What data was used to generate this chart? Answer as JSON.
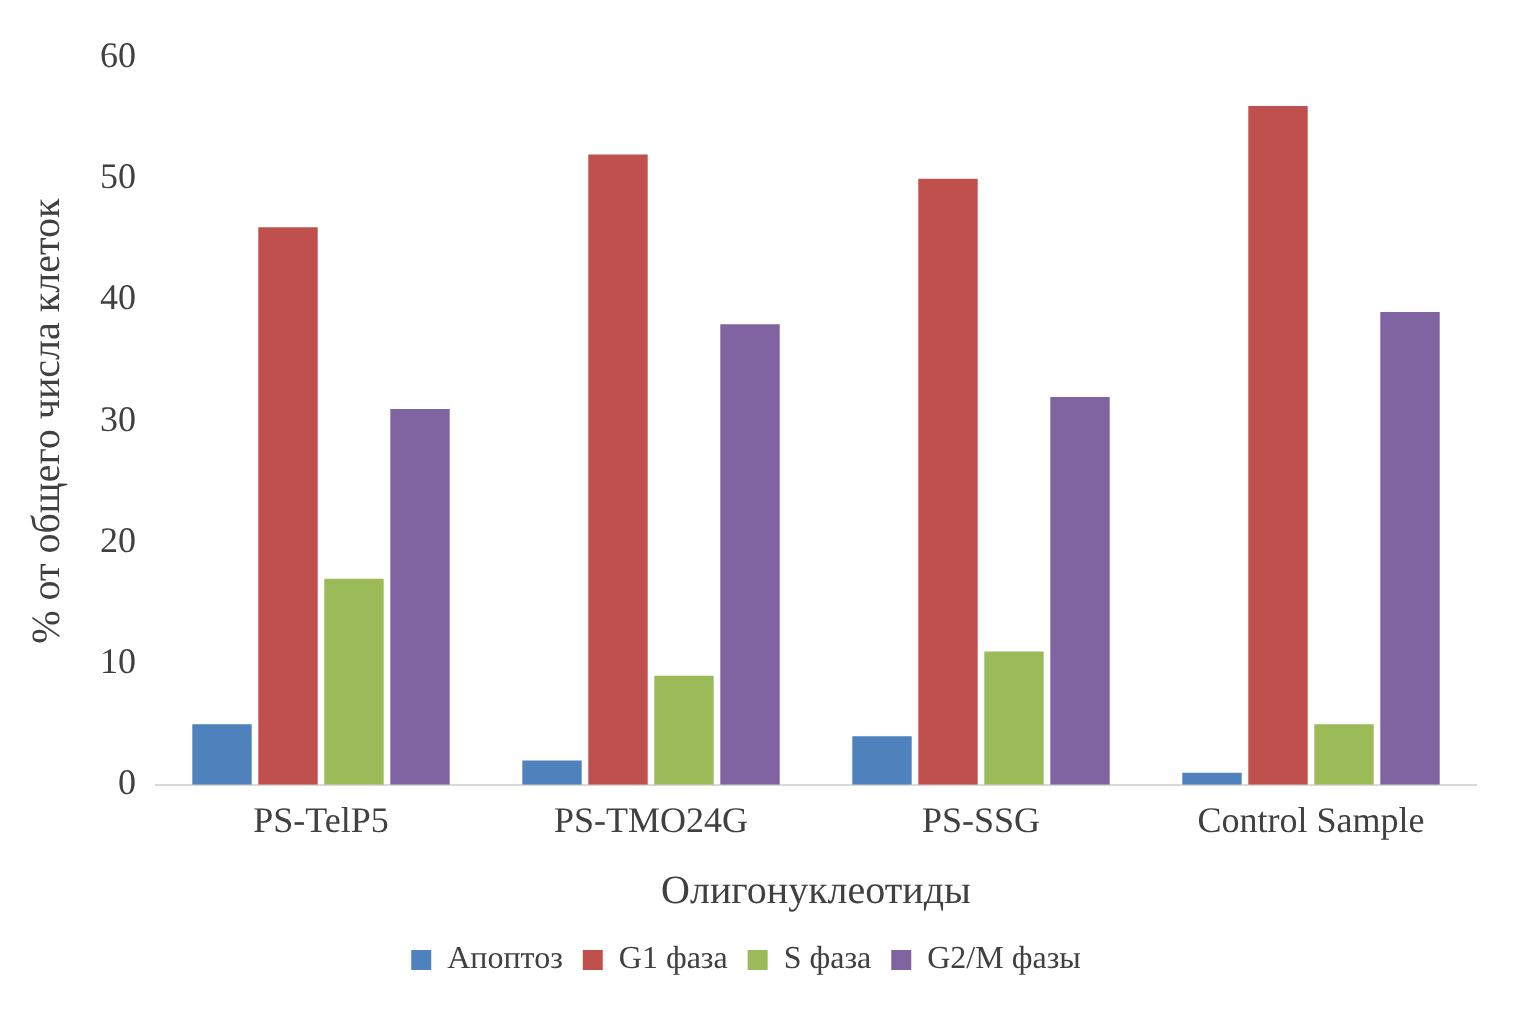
{
  "chart_data": {
    "type": "bar",
    "xlabel": "Олигонуклеотиды",
    "ylabel": "% от общего числа клеток",
    "categories": [
      "PS-TelP5",
      "PS-TMO24G",
      "PS-SSG",
      "Control Sample"
    ],
    "series": [
      {
        "name": "Апоптоз",
        "color": "#4f81bd",
        "values": [
          5,
          2,
          4,
          1
        ]
      },
      {
        "name": "G1 фаза",
        "color": "#c0504d",
        "values": [
          46,
          52,
          50,
          56
        ]
      },
      {
        "name": "S фаза",
        "color": "#9bbb59",
        "values": [
          17,
          9,
          11,
          5
        ]
      },
      {
        "name": "G2/M фазы",
        "color": "#8064a2",
        "values": [
          31,
          38,
          32,
          39
        ]
      }
    ],
    "ylim": [
      0,
      60
    ],
    "yticks": [
      0,
      10,
      20,
      30,
      40,
      50,
      60
    ],
    "grid": false,
    "legend": "bottom"
  }
}
